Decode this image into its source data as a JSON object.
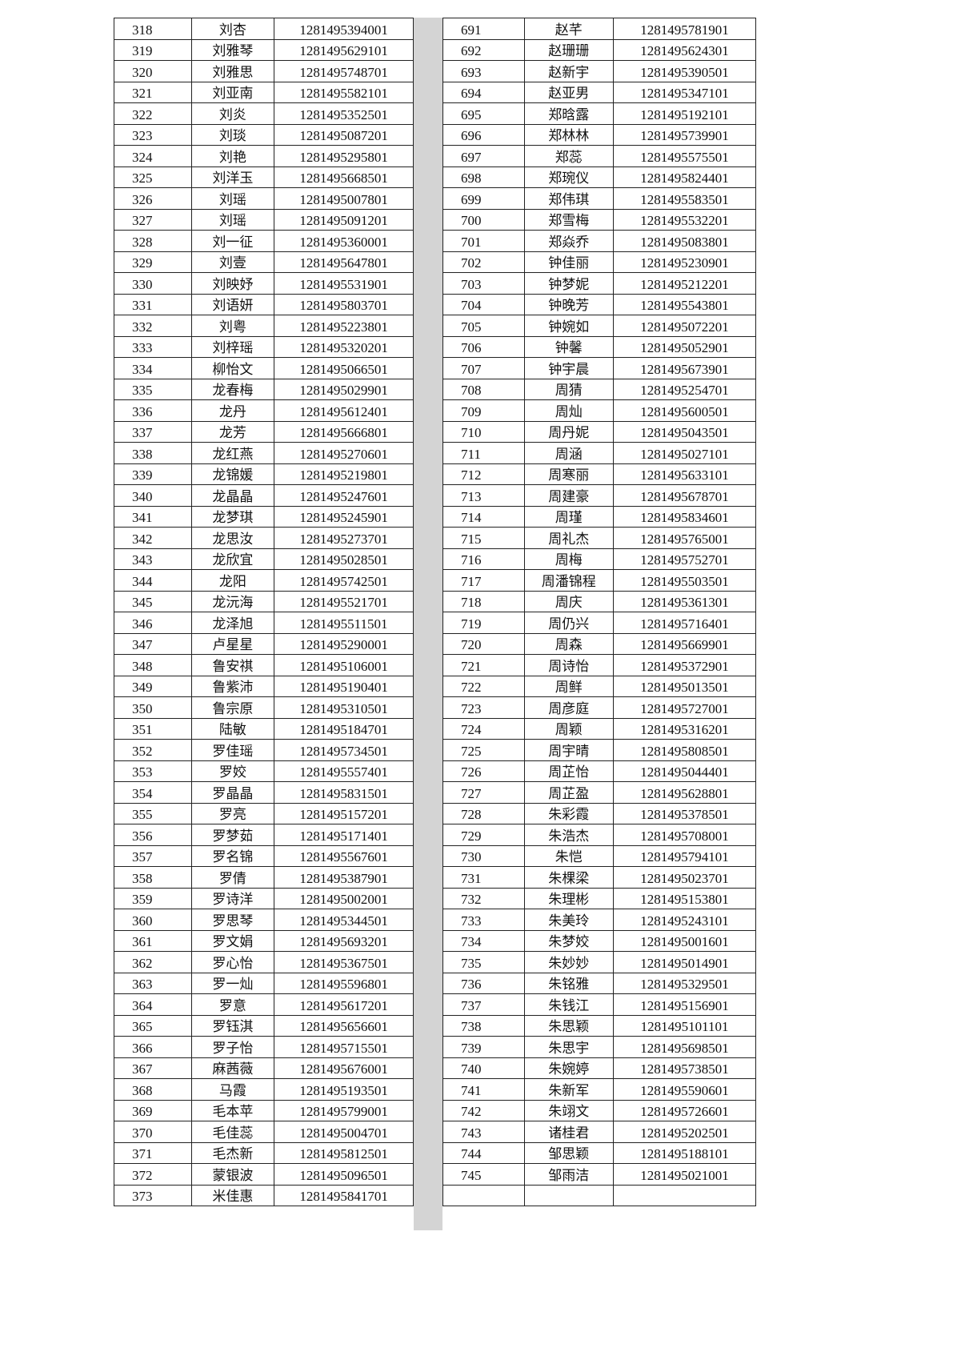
{
  "left": {
    "rows": [
      [
        "318",
        "刘杏",
        "1281495394001"
      ],
      [
        "319",
        "刘雅琴",
        "1281495629101"
      ],
      [
        "320",
        "刘雅思",
        "1281495748701"
      ],
      [
        "321",
        "刘亚南",
        "1281495582101"
      ],
      [
        "322",
        "刘炎",
        "1281495352501"
      ],
      [
        "323",
        "刘琰",
        "1281495087201"
      ],
      [
        "324",
        "刘艳",
        "1281495295801"
      ],
      [
        "325",
        "刘洋玉",
        "1281495668501"
      ],
      [
        "326",
        "刘瑶",
        "1281495007801"
      ],
      [
        "327",
        "刘瑶",
        "1281495091201"
      ],
      [
        "328",
        "刘一征",
        "1281495360001"
      ],
      [
        "329",
        "刘壹",
        "1281495647801"
      ],
      [
        "330",
        "刘映妤",
        "1281495531901"
      ],
      [
        "331",
        "刘语妍",
        "1281495803701"
      ],
      [
        "332",
        "刘粤",
        "1281495223801"
      ],
      [
        "333",
        "刘梓瑶",
        "1281495320201"
      ],
      [
        "334",
        "柳怡文",
        "1281495066501"
      ],
      [
        "335",
        "龙春梅",
        "1281495029901"
      ],
      [
        "336",
        "龙丹",
        "1281495612401"
      ],
      [
        "337",
        "龙芳",
        "1281495666801"
      ],
      [
        "338",
        "龙红燕",
        "1281495270601"
      ],
      [
        "339",
        "龙锦媛",
        "1281495219801"
      ],
      [
        "340",
        "龙晶晶",
        "1281495247601"
      ],
      [
        "341",
        "龙梦琪",
        "1281495245901"
      ],
      [
        "342",
        "龙思汝",
        "1281495273701"
      ],
      [
        "343",
        "龙欣宜",
        "1281495028501"
      ],
      [
        "344",
        "龙阳",
        "1281495742501"
      ],
      [
        "345",
        "龙沅海",
        "1281495521701"
      ],
      [
        "346",
        "龙泽旭",
        "1281495511501"
      ],
      [
        "347",
        "卢星星",
        "1281495290001"
      ],
      [
        "348",
        "鲁安祺",
        "1281495106001"
      ],
      [
        "349",
        "鲁紫沛",
        "1281495190401"
      ],
      [
        "350",
        "鲁宗原",
        "1281495310501"
      ],
      [
        "351",
        "陆敏",
        "1281495184701"
      ],
      [
        "352",
        "罗佳瑶",
        "1281495734501"
      ],
      [
        "353",
        "罗姣",
        "1281495557401"
      ],
      [
        "354",
        "罗晶晶",
        "1281495831501"
      ],
      [
        "355",
        "罗亮",
        "1281495157201"
      ],
      [
        "356",
        "罗梦茹",
        "1281495171401"
      ],
      [
        "357",
        "罗名锦",
        "1281495567601"
      ],
      [
        "358",
        "罗倩",
        "1281495387901"
      ],
      [
        "359",
        "罗诗洋",
        "1281495002001"
      ],
      [
        "360",
        "罗思琴",
        "1281495344501"
      ],
      [
        "361",
        "罗文娟",
        "1281495693201"
      ],
      [
        "362",
        "罗心怡",
        "1281495367501"
      ],
      [
        "363",
        "罗一灿",
        "1281495596801"
      ],
      [
        "364",
        "罗意",
        "1281495617201"
      ],
      [
        "365",
        "罗钰淇",
        "1281495656601"
      ],
      [
        "366",
        "罗子怡",
        "1281495715501"
      ],
      [
        "367",
        "麻茜薇",
        "1281495676001"
      ],
      [
        "368",
        "马霞",
        "1281495193501"
      ],
      [
        "369",
        "毛本苹",
        "1281495799001"
      ],
      [
        "370",
        "毛佳蕊",
        "1281495004701"
      ],
      [
        "371",
        "毛杰新",
        "1281495812501"
      ],
      [
        "372",
        "蒙银波",
        "1281495096501"
      ],
      [
        "373",
        "米佳惠",
        "1281495841701"
      ]
    ]
  },
  "right": {
    "rows": [
      [
        "691",
        "赵芊",
        "1281495781901"
      ],
      [
        "692",
        "赵珊珊",
        "1281495624301"
      ],
      [
        "693",
        "赵新宇",
        "1281495390501"
      ],
      [
        "694",
        "赵亚男",
        "1281495347101"
      ],
      [
        "695",
        "郑晗露",
        "1281495192101"
      ],
      [
        "696",
        "郑林林",
        "1281495739901"
      ],
      [
        "697",
        "郑蕊",
        "1281495575501"
      ],
      [
        "698",
        "郑琬仪",
        "1281495824401"
      ],
      [
        "699",
        "郑伟琪",
        "1281495583501"
      ],
      [
        "700",
        "郑雪梅",
        "1281495532201"
      ],
      [
        "701",
        "郑焱乔",
        "1281495083801"
      ],
      [
        "702",
        "钟佳丽",
        "1281495230901"
      ],
      [
        "703",
        "钟梦妮",
        "1281495212201"
      ],
      [
        "704",
        "钟晚芳",
        "1281495543801"
      ],
      [
        "705",
        "钟婉如",
        "1281495072201"
      ],
      [
        "706",
        "钟馨",
        "1281495052901"
      ],
      [
        "707",
        "钟宇晨",
        "1281495673901"
      ],
      [
        "708",
        "周猜",
        "1281495254701"
      ],
      [
        "709",
        "周灿",
        "1281495600501"
      ],
      [
        "710",
        "周丹妮",
        "1281495043501"
      ],
      [
        "711",
        "周涵",
        "1281495027101"
      ],
      [
        "712",
        "周寒丽",
        "1281495633101"
      ],
      [
        "713",
        "周建豪",
        "1281495678701"
      ],
      [
        "714",
        "周瑾",
        "1281495834601"
      ],
      [
        "715",
        "周礼杰",
        "1281495765001"
      ],
      [
        "716",
        "周梅",
        "1281495752701"
      ],
      [
        "717",
        "周潘锦程",
        "1281495503501"
      ],
      [
        "718",
        "周庆",
        "1281495361301"
      ],
      [
        "719",
        "周仍兴",
        "1281495716401"
      ],
      [
        "720",
        "周森",
        "1281495669901"
      ],
      [
        "721",
        "周诗怡",
        "1281495372901"
      ],
      [
        "722",
        "周鲜",
        "1281495013501"
      ],
      [
        "723",
        "周彦庭",
        "1281495727001"
      ],
      [
        "724",
        "周颖",
        "1281495316201"
      ],
      [
        "725",
        "周宇晴",
        "1281495808501"
      ],
      [
        "726",
        "周芷怡",
        "1281495044401"
      ],
      [
        "727",
        "周芷盈",
        "1281495628801"
      ],
      [
        "728",
        "朱彩霞",
        "1281495378501"
      ],
      [
        "729",
        "朱浩杰",
        "1281495708001"
      ],
      [
        "730",
        "朱恺",
        "1281495794101"
      ],
      [
        "731",
        "朱棵梁",
        "1281495023701"
      ],
      [
        "732",
        "朱理彬",
        "1281495153801"
      ],
      [
        "733",
        "朱美玲",
        "1281495243101"
      ],
      [
        "734",
        "朱梦姣",
        "1281495001601"
      ],
      [
        "735",
        "朱妙妙",
        "1281495014901"
      ],
      [
        "736",
        "朱铭雅",
        "1281495329501"
      ],
      [
        "737",
        "朱钱江",
        "1281495156901"
      ],
      [
        "738",
        "朱思颖",
        "1281495101101"
      ],
      [
        "739",
        "朱思宇",
        "1281495698501"
      ],
      [
        "740",
        "朱婉婷",
        "1281495738501"
      ],
      [
        "741",
        "朱新军",
        "1281495590601"
      ],
      [
        "742",
        "朱翊文",
        "1281495726601"
      ],
      [
        "743",
        "诸桂君",
        "1281495202501"
      ],
      [
        "744",
        "邹思颖",
        "1281495188101"
      ],
      [
        "745",
        "邹雨洁",
        "1281495021001"
      ]
    ]
  }
}
